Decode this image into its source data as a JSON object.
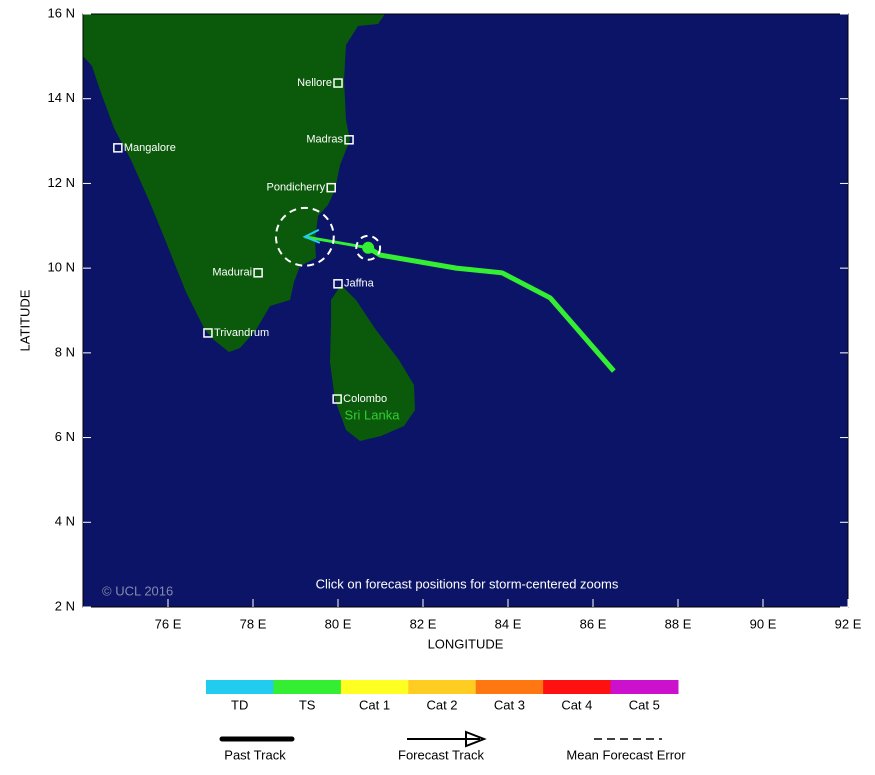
{
  "map": {
    "xlim": [
      74,
      92
    ],
    "ylim": [
      2,
      16
    ],
    "xticks": [
      {
        "value": 76,
        "label": "76 E"
      },
      {
        "value": 78,
        "label": "78 E"
      },
      {
        "value": 80,
        "label": "80 E"
      },
      {
        "value": 82,
        "label": "82 E"
      },
      {
        "value": 84,
        "label": "84 E"
      },
      {
        "value": 86,
        "label": "86 E"
      },
      {
        "value": 88,
        "label": "88 E"
      },
      {
        "value": 90,
        "label": "90 E"
      },
      {
        "value": 92,
        "label": "92 E"
      }
    ],
    "yticks": [
      {
        "value": 2,
        "label": "2 N"
      },
      {
        "value": 4,
        "label": "4 N"
      },
      {
        "value": 6,
        "label": "6 N"
      },
      {
        "value": 8,
        "label": "8 N"
      },
      {
        "value": 10,
        "label": "10 N"
      },
      {
        "value": 12,
        "label": "12 N"
      },
      {
        "value": 14,
        "label": "14 N"
      },
      {
        "value": 16,
        "label": "16 N"
      }
    ],
    "xlabel": "LONGITUDE",
    "ylabel": "LATITUDE",
    "copyright": "© UCL 2016",
    "note": "Click on forecast positions for storm-centered zooms",
    "country_label": "Sri Lanka",
    "cities": [
      {
        "name": "Nellore",
        "lon": 80.0,
        "lat": 14.37
      },
      {
        "name": "Madras",
        "lon": 80.26,
        "lat": 13.03
      },
      {
        "name": "Pondicherry",
        "lon": 79.84,
        "lat": 11.9
      },
      {
        "name": "Mangalore",
        "lon": 74.82,
        "lat": 12.84
      },
      {
        "name": "Madurai",
        "lon": 78.12,
        "lat": 9.89
      },
      {
        "name": "Trivandrum",
        "lon": 76.94,
        "lat": 8.47
      },
      {
        "name": "Jaffna",
        "lon": 80.0,
        "lat": 9.63
      },
      {
        "name": "Colombo",
        "lon": 79.98,
        "lat": 6.91
      }
    ],
    "past_track": {
      "color": "#33ee33",
      "lon": [
        86.49,
        84.99,
        83.86,
        82.78,
        80.99,
        80.71
      ],
      "lat": [
        7.57,
        9.3,
        9.89,
        10.0,
        10.31,
        10.48
      ]
    },
    "forecast_track": {
      "color": "#33ee33",
      "arrow_color": "#22ccee",
      "lon": [
        80.71,
        79.22
      ],
      "lat": [
        10.48,
        10.74
      ],
      "error_radius": [
        0.28,
        0.68
      ]
    }
  },
  "legend": {
    "categories": [
      {
        "name": "TD",
        "color": "#22ccee"
      },
      {
        "name": "TS",
        "color": "#33ee33"
      },
      {
        "name": "Cat 1",
        "color": "#ffff22"
      },
      {
        "name": "Cat 2",
        "color": "#ffcc22"
      },
      {
        "name": "Cat 3",
        "color": "#ff7711"
      },
      {
        "name": "Cat 4",
        "color": "#ff1111"
      },
      {
        "name": "Cat 5",
        "color": "#cc11cc"
      }
    ],
    "tracks": [
      "Past Track",
      "Forecast Track",
      "Mean Forecast Error"
    ]
  }
}
